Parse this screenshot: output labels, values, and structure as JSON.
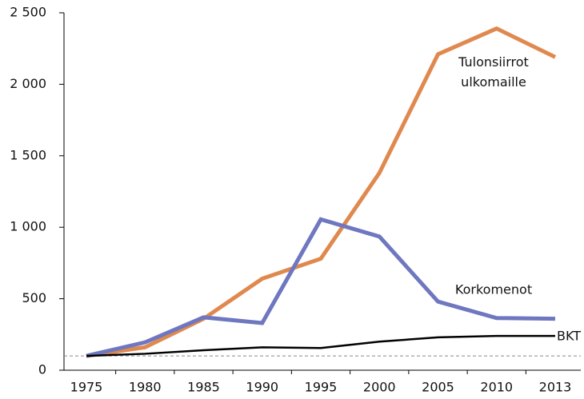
{
  "chart_data": {
    "type": "line",
    "categories": [
      "1975",
      "1980",
      "1985",
      "1990",
      "1995",
      "2000",
      "2005",
      "2010",
      "2013"
    ],
    "series": [
      {
        "name": "Tulonsiirrot ulkomaille",
        "color": "#e0894f",
        "values": [
          100,
          160,
          360,
          640,
          780,
          1380,
          2210,
          2390,
          2190
        ]
      },
      {
        "name": "Korkomenot",
        "color": "#6e77bf",
        "values": [
          100,
          195,
          370,
          330,
          1055,
          935,
          480,
          365,
          360
        ]
      },
      {
        "name": "BKT",
        "color": "#000000",
        "values": [
          100,
          115,
          140,
          160,
          155,
          200,
          230,
          240,
          240
        ]
      }
    ],
    "reference_line": 100,
    "ylim": [
      0,
      2500
    ],
    "yticks": [
      0,
      500,
      {
        "value": 1000,
        "label": "1 000"
      },
      {
        "value": 1500,
        "label": "1 500"
      },
      {
        "value": 2000,
        "label": "2 000"
      },
      {
        "value": 2500,
        "label": "2 500"
      }
    ]
  }
}
